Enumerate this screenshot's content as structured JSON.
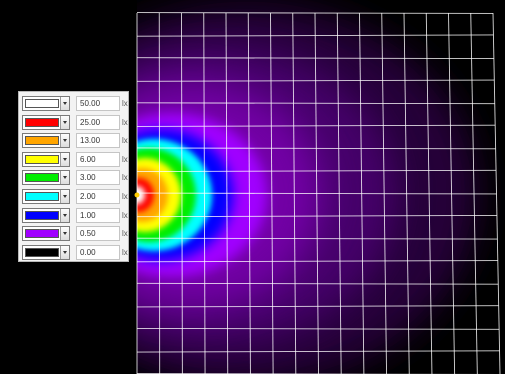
{
  "legend": {
    "unit": "lx",
    "rows": [
      {
        "color": "#ffffff",
        "value": "50.00",
        "unit": "lx"
      },
      {
        "color": "#ff0000",
        "value": "25.00",
        "unit": "lx"
      },
      {
        "color": "#ffa500",
        "value": "13.00",
        "unit": "lx"
      },
      {
        "color": "#ffff00",
        "value": "6.00",
        "unit": "lx"
      },
      {
        "color": "#00ee00",
        "value": "3.00",
        "unit": "lx"
      },
      {
        "color": "#00ffff",
        "value": "2.00",
        "unit": "lx"
      },
      {
        "color": "#0000ff",
        "value": "1.00",
        "unit": "lx"
      },
      {
        "color": "#a000ff",
        "value": "0.50",
        "unit": "lx"
      },
      {
        "color": "#000000",
        "value": "0.00",
        "unit": "lx"
      }
    ]
  },
  "colors": {
    "background": "#000000",
    "grid": "#ffffff"
  }
}
